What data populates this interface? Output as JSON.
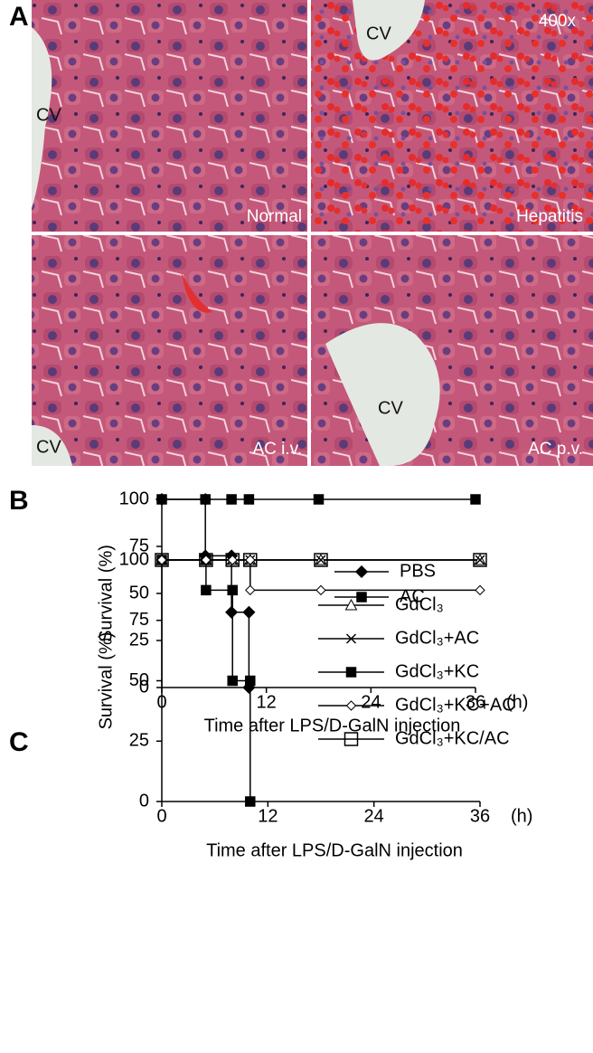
{
  "panel_a": {
    "label": "A",
    "magnification": "400x",
    "images": [
      {
        "title": "Normal",
        "vessel": "CV"
      },
      {
        "title": "Hepatitis",
        "vessel": "CV"
      },
      {
        "title": "AC i.v.",
        "vessel": "CV"
      },
      {
        "title": "AC p.v.",
        "vessel": "CV"
      }
    ]
  },
  "chart_data": [
    {
      "type": "line",
      "panel_label": "B",
      "ylabel": "Survival (%)",
      "xlabel": "Time after LPS/D-GalN injection",
      "x_unit": "(h)",
      "xlim": [
        0,
        36
      ],
      "xticks": [
        0,
        12,
        24,
        36
      ],
      "ylim": [
        0,
        100
      ],
      "yticks": [
        0,
        25,
        50,
        75,
        100
      ],
      "grid": false,
      "series": [
        {
          "name": "PBS",
          "color": "#000000",
          "marker": "diamond",
          "x": [
            0,
            5,
            5,
            8,
            8,
            10,
            10
          ],
          "values": [
            100,
            100,
            70,
            70,
            40,
            40,
            0
          ]
        },
        {
          "name": "AC",
          "color": "#000000",
          "marker": "square",
          "x": [
            0,
            5,
            8,
            10,
            18,
            36
          ],
          "values": [
            100,
            100,
            100,
            100,
            100,
            100
          ]
        }
      ]
    },
    {
      "type": "line",
      "panel_label": "C",
      "ylabel": "Survival (%)",
      "xlabel": "Time after LPS/D-GalN injection",
      "x_unit": "(h)",
      "xlim": [
        0,
        36
      ],
      "xticks": [
        0,
        12,
        24,
        36
      ],
      "ylim": [
        0,
        100
      ],
      "yticks": [
        0,
        25,
        50,
        75,
        100
      ],
      "grid": false,
      "series": [
        {
          "name": "GdCl₃",
          "color": "#000000",
          "marker": "triangle",
          "x": [
            0,
            5,
            8,
            10,
            18,
            36
          ],
          "values": [
            100,
            100,
            100,
            100,
            100,
            100
          ]
        },
        {
          "name": "GdCl₃+AC",
          "color": "#000000",
          "marker": "x",
          "x": [
            0,
            5,
            8,
            10,
            18,
            36
          ],
          "values": [
            100,
            100,
            100,
            100,
            100,
            100
          ]
        },
        {
          "name": "GdCl₃+KC",
          "color": "#000000",
          "marker": "square",
          "x": [
            0,
            5,
            5,
            8,
            8,
            10,
            10
          ],
          "values": [
            100,
            100,
            87.5,
            87.5,
            50,
            50,
            0
          ]
        },
        {
          "name": "GdCl₃+KC+AC",
          "color": "#000000",
          "marker": "diamond-open",
          "x": [
            0,
            5,
            8,
            10,
            10,
            18,
            36
          ],
          "values": [
            100,
            100,
            100,
            100,
            87.5,
            87.5,
            87.5
          ]
        },
        {
          "name": "GdCl₃+KC/AC",
          "color": "#000000",
          "marker": "open-square",
          "x": [
            0,
            5,
            8,
            10,
            18,
            36
          ],
          "values": [
            100,
            100,
            100,
            100,
            100,
            100
          ]
        }
      ]
    }
  ]
}
